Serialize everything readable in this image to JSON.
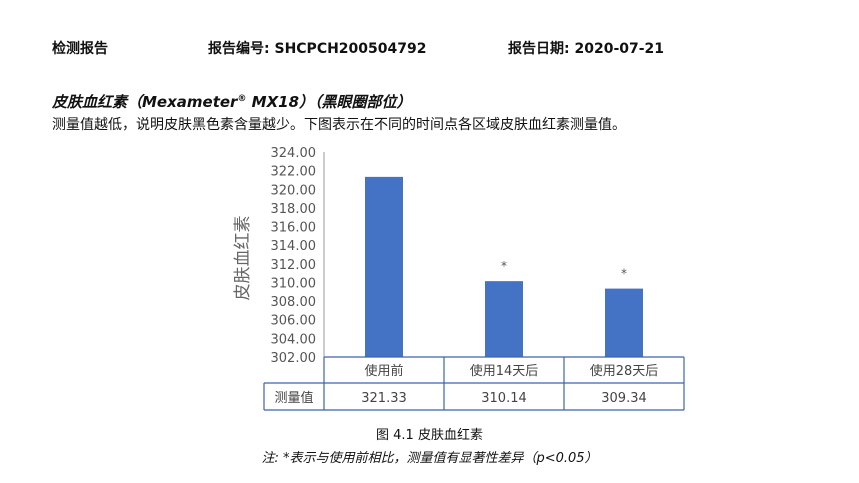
{
  "header": {
    "report_type": "检测报告",
    "report_no_label": "报告编号:",
    "report_no": "SHCPCH200504792",
    "report_date_label": "报告日期:",
    "report_date": "2020-07-21"
  },
  "section": {
    "title_prefix": "皮肤血红素（Mexameter",
    "title_reg": "®",
    "title_suffix": " MX18）（黑眼圈部位）",
    "description": "测量值越低，说明皮肤黑色素含量越少。下图表示在不同的时间点各区域皮肤血红素测量值。"
  },
  "chart_data": {
    "type": "bar",
    "ylabel": "皮肤血红素",
    "ylim": [
      302,
      324
    ],
    "ytick_step": 2,
    "yticks": [
      "324.00",
      "322.00",
      "320.00",
      "318.00",
      "316.00",
      "314.00",
      "312.00",
      "310.00",
      "308.00",
      "306.00",
      "304.00",
      "302.00"
    ],
    "categories": [
      "使用前",
      "使用14天后",
      "使用28天后"
    ],
    "series": [
      {
        "name": "测量值",
        "values": [
          321.33,
          310.14,
          309.34
        ],
        "value_labels": [
          "321.33",
          "310.14",
          "309.34"
        ],
        "color": "#4472C4"
      }
    ],
    "annotations": [
      "",
      "*",
      "*"
    ],
    "table_row_label": "测量值",
    "grid": false
  },
  "caption": "图 4.1 皮肤血红素",
  "note": "注:  *表示与使用前相比，测量值有显著性差异（p<0.05）"
}
